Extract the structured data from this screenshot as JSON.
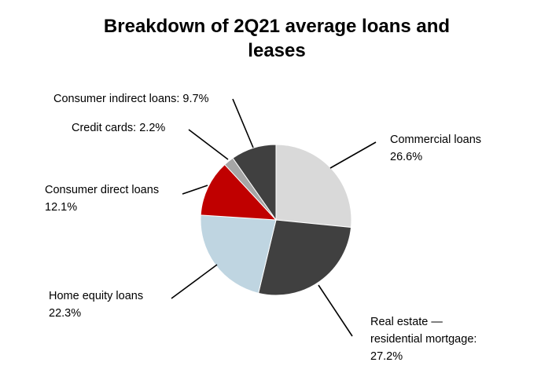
{
  "chart_data": {
    "type": "pie",
    "title": "Breakdown of 2Q21 average loans and leases",
    "title_lines": [
      "Breakdown of 2Q21 average loans and",
      "leases"
    ],
    "slices": [
      {
        "name": "Commercial loans",
        "value": 26.6,
        "label_lines": [
          "Commercial loans",
          "26.6%"
        ],
        "color": "#d9d9d9"
      },
      {
        "name": "Real estate — residential mortgage",
        "value": 27.2,
        "label_lines": [
          "Real estate —",
          "residential mortgage:",
          "27.2%"
        ],
        "color": "#404040"
      },
      {
        "name": "Home equity loans",
        "value": 22.3,
        "label_lines": [
          "Home equity loans",
          "22.3%"
        ],
        "color": "#bfd5e1"
      },
      {
        "name": "Consumer direct loans",
        "value": 12.1,
        "label_lines": [
          "Consumer direct loans",
          "12.1%"
        ],
        "color": "#c00000"
      },
      {
        "name": "Credit cards",
        "value": 2.2,
        "label_lines": [
          "Credit cards: 2.2%"
        ],
        "color": "#a6a6a6"
      },
      {
        "name": "Consumer indirect loans",
        "value": 9.7,
        "label_lines": [
          "Consumer indirect loans: 9.7%"
        ],
        "color": "#404040"
      }
    ],
    "start_angle_deg": 0,
    "direction": "clockwise",
    "legend": "none"
  }
}
